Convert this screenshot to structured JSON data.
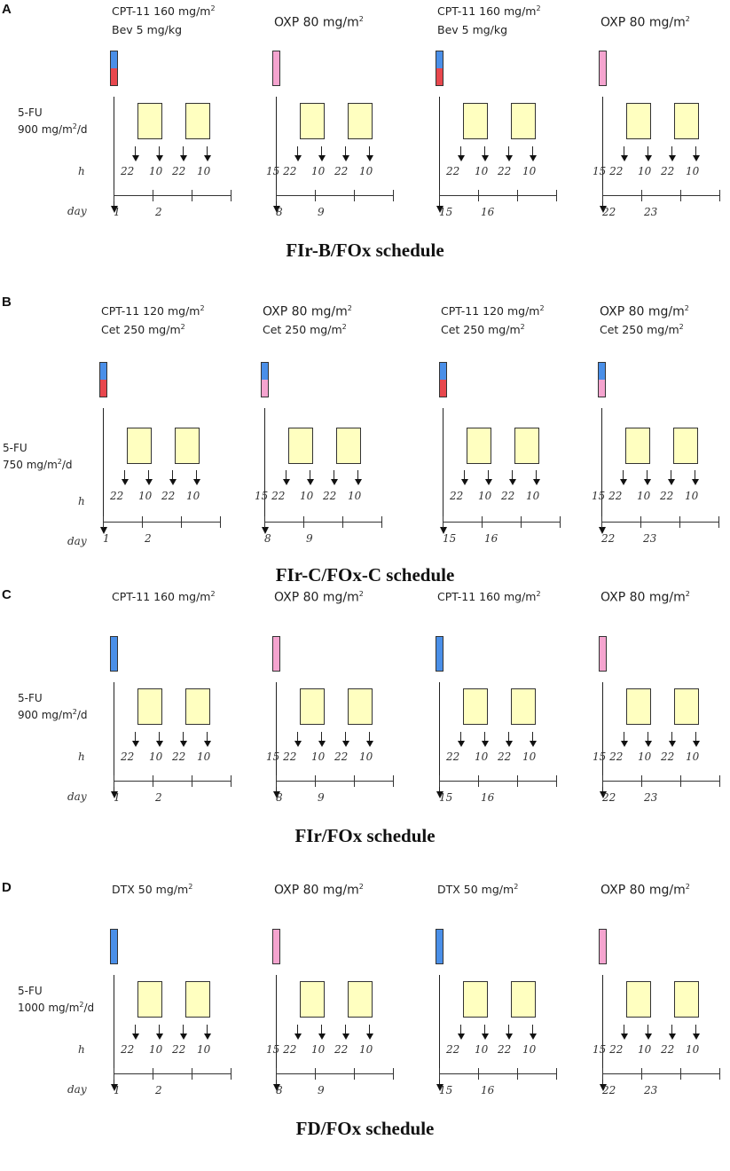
{
  "colors": {
    "blue": "#4a8fe8",
    "red": "#e8474d",
    "pink": "#f5a4cf",
    "infusion": "#ffffc0"
  },
  "labels": {
    "hours": "h",
    "day": "day"
  },
  "panels": [
    {
      "letter": "A",
      "fu": {
        "name": "5-FU",
        "dose": "900 mg/m",
        "sup": "2",
        "tail": "/d"
      },
      "caption": "FIr-B/FOx schedule",
      "blocks": [
        {
          "lines": [
            {
              "t": "CPT-11 160 mg/m",
              "s": "2"
            },
            {
              "t": "Bev 5 mg/kg",
              "s": ""
            }
          ],
          "bottle": [
            "blue",
            "red"
          ],
          "hours": [
            "22",
            "10",
            "22",
            "10"
          ],
          "days": [
            "1",
            "2"
          ]
        },
        {
          "lines": [
            {
              "t": "OXP 80 mg/m",
              "s": "2"
            }
          ],
          "bottle": [
            "pink",
            "pink"
          ],
          "hours": [
            "15 22",
            "10",
            "22",
            "10"
          ],
          "days": [
            "8",
            "9"
          ]
        },
        {
          "lines": [
            {
              "t": "CPT-11 160 mg/m",
              "s": "2"
            },
            {
              "t": "Bev 5 mg/kg",
              "s": ""
            }
          ],
          "bottle": [
            "blue",
            "red"
          ],
          "hours": [
            "22",
            "10",
            "22",
            "10"
          ],
          "days": [
            "15",
            "16"
          ]
        },
        {
          "lines": [
            {
              "t": "OXP 80 mg/m",
              "s": "2"
            }
          ],
          "bottle": [
            "pink",
            "pink"
          ],
          "hours": [
            "15 22",
            "10",
            "22",
            "10"
          ],
          "days": [
            "22",
            "23"
          ]
        }
      ]
    },
    {
      "letter": "B",
      "fu": {
        "name": "5-FU",
        "dose": "750 mg/m",
        "sup": "2",
        "tail": "/d"
      },
      "caption": "FIr-C/FOx-C schedule",
      "blocks": [
        {
          "lines": [
            {
              "t": "CPT-11 120 mg/m",
              "s": "2"
            },
            {
              "t": "Cet 250 mg/m",
              "s": "2"
            }
          ],
          "bottle": [
            "blue",
            "red"
          ],
          "hours": [
            "22",
            "10",
            "22",
            "10"
          ],
          "days": [
            "1",
            "2"
          ]
        },
        {
          "lines": [
            {
              "t": "OXP  80 mg/m",
              "s": "2"
            },
            {
              "t": "Cet 250 mg/m",
              "s": "2"
            }
          ],
          "bottle": [
            "blue",
            "pink"
          ],
          "hours": [
            "15 22",
            "10",
            "22",
            "10"
          ],
          "days": [
            "8",
            "9"
          ]
        },
        {
          "lines": [
            {
              "t": "CPT-11 120 mg/m",
              "s": "2"
            },
            {
              "t": "Cet 250 mg/m",
              "s": "2"
            }
          ],
          "bottle": [
            "blue",
            "red"
          ],
          "hours": [
            "22",
            "10",
            "22",
            "10"
          ],
          "days": [
            "15",
            "16"
          ]
        },
        {
          "lines": [
            {
              "t": "OXP  80 mg/m",
              "s": "2"
            },
            {
              "t": "Cet 250 mg/m",
              "s": "2"
            }
          ],
          "bottle": [
            "blue",
            "pink"
          ],
          "hours": [
            "15 22",
            "10",
            "22",
            "10"
          ],
          "days": [
            "22",
            "23"
          ]
        }
      ]
    },
    {
      "letter": "C",
      "fu": {
        "name": "5-FU",
        "dose": "900 mg/m",
        "sup": "2",
        "tail": "/d"
      },
      "caption": "FIr/FOx schedule",
      "blocks": [
        {
          "lines": [
            {
              "t": "CPT-11 160 mg/m",
              "s": "2"
            }
          ],
          "bottle": [
            "blue",
            "blue"
          ],
          "hours": [
            "22",
            "10",
            "22",
            "10"
          ],
          "days": [
            "1",
            "2"
          ]
        },
        {
          "lines": [
            {
              "t": "OXP 80 mg/m",
              "s": "2"
            }
          ],
          "bottle": [
            "pink",
            "pink"
          ],
          "hours": [
            "15 22",
            "10",
            "22",
            "10"
          ],
          "days": [
            "8",
            "9"
          ]
        },
        {
          "lines": [
            {
              "t": "CPT-11 160 mg/m",
              "s": "2"
            }
          ],
          "bottle": [
            "blue",
            "blue"
          ],
          "hours": [
            "22",
            "10",
            "22",
            "10"
          ],
          "days": [
            "15",
            "16"
          ]
        },
        {
          "lines": [
            {
              "t": "OXP  80 mg/m",
              "s": "2"
            }
          ],
          "bottle": [
            "pink",
            "pink"
          ],
          "hours": [
            "15 22",
            "10",
            "22",
            "10"
          ],
          "days": [
            "22",
            "23"
          ]
        }
      ]
    },
    {
      "letter": "D",
      "fu": {
        "name": "5-FU",
        "dose": "1000 mg/m",
        "sup": "2",
        "tail": "/d"
      },
      "caption": "FD/FOx schedule",
      "blocks": [
        {
          "lines": [
            {
              "t": "DTX 50  mg/m",
              "s": "2"
            }
          ],
          "bottle": [
            "blue",
            "blue"
          ],
          "hours": [
            "22",
            "10",
            "22",
            "10"
          ],
          "days": [
            "1",
            "2"
          ]
        },
        {
          "lines": [
            {
              "t": "OXP 80 mg/m",
              "s": "2"
            }
          ],
          "bottle": [
            "pink",
            "pink"
          ],
          "hours": [
            "15 22",
            "10",
            "22",
            "10"
          ],
          "days": [
            "8",
            "9"
          ]
        },
        {
          "lines": [
            {
              "t": "DTX 50  mg/m",
              "s": "2"
            }
          ],
          "bottle": [
            "blue",
            "blue"
          ],
          "hours": [
            "22",
            "10",
            "22",
            "10"
          ],
          "days": [
            "15",
            "16"
          ]
        },
        {
          "lines": [
            {
              "t": "OXP  80 mg/m",
              "s": "2"
            }
          ],
          "bottle": [
            "pink",
            "pink"
          ],
          "hours": [
            "15 22",
            "10",
            "22",
            "10"
          ],
          "days": [
            "22",
            "23"
          ]
        }
      ]
    }
  ]
}
